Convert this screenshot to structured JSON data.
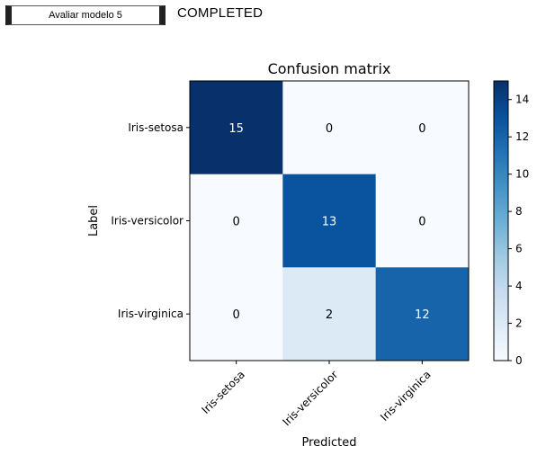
{
  "toolbar": {
    "model_button_label": "Avaliar modelo 5",
    "status": "COMPLETED"
  },
  "chart_data": {
    "type": "heatmap",
    "title": "Confusion matrix",
    "xlabel": "Predicted",
    "ylabel": "Label",
    "row_labels": [
      "Iris-setosa",
      "Iris-versicolor",
      "Iris-virginica"
    ],
    "col_labels": [
      "Iris-setosa",
      "Iris-versicolor",
      "Iris-virginica"
    ],
    "values": [
      [
        15,
        0,
        0
      ],
      [
        0,
        13,
        0
      ],
      [
        0,
        2,
        12
      ]
    ],
    "colorbar": {
      "range": [
        0,
        15
      ],
      "ticks": [
        0,
        2,
        4,
        6,
        8,
        10,
        12,
        14
      ]
    },
    "colormap": "Blues",
    "colors": {
      "low": "#f7fbff",
      "high": "#08306b"
    }
  }
}
